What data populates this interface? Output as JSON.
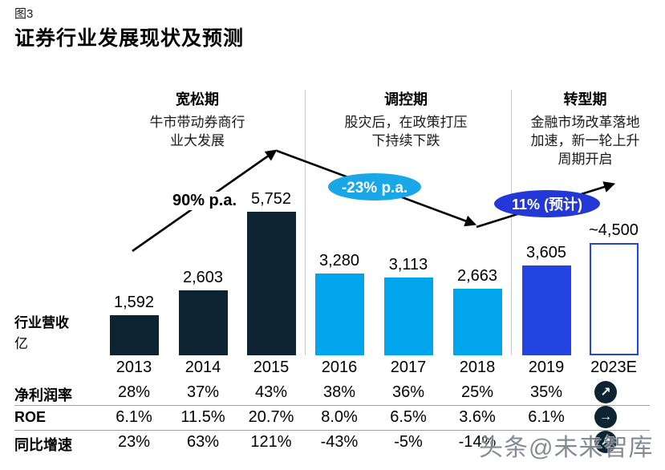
{
  "figure_label": "图3",
  "title": "证券行业发展现状及预测",
  "colors": {
    "bar_dark": "#0e2433",
    "bar_light": "#00a5ec",
    "bar_royal": "#2344e0",
    "outline_border": "#2344e0",
    "bubble_light": "#1aa7e8",
    "bubble_dark": "#2338d6",
    "divider": "#c9c9c9",
    "icon_bg": "#0e2433",
    "watermark": "#757b84"
  },
  "phases": [
    {
      "title": "宽松期",
      "desc_lines": [
        "牛市带动券商行",
        "业大发展"
      ]
    },
    {
      "title": "调控期",
      "desc_lines": [
        "股灾后，在政策打压",
        "下持续下跌"
      ]
    },
    {
      "title": "转型期",
      "desc_lines": [
        "金融市场改革落地",
        "加速，新一轮上升",
        "周期开启"
      ]
    }
  ],
  "annotations": {
    "phase1_rate": "90% p.a.",
    "phase2_rate": "-23% p.a.",
    "phase3_rate": "11% (预计)"
  },
  "y_axis": {
    "title": "行业营收",
    "unit": "亿"
  },
  "chart_data": {
    "type": "bar",
    "title": "证券行业发展现状及预测",
    "ylabel": "行业营收（亿）",
    "categories": [
      "2013",
      "2014",
      "2015",
      "2016",
      "2017",
      "2018",
      "2019",
      "2023E"
    ],
    "values": [
      1592,
      2603,
      5752,
      3280,
      3113,
      2663,
      3605,
      4500
    ],
    "value_labels": [
      "1,592",
      "2,603",
      "5,752",
      "3,280",
      "3,113",
      "2,663",
      "3,605",
      "~4,500"
    ],
    "bar_styles": [
      "dark",
      "dark",
      "dark",
      "light",
      "light",
      "light",
      "royal",
      "outline"
    ],
    "growth_annotations": [
      "90% p.a.",
      "-23% p.a.",
      "11% (预计)"
    ],
    "grid": false,
    "legend": false
  },
  "table": {
    "rows": [
      {
        "label": "净利润率",
        "values": [
          "28%",
          "37%",
          "43%",
          "38%",
          "36%",
          "25%",
          "35%"
        ],
        "icon": "arrow-up-right"
      },
      {
        "label": "ROE",
        "values": [
          "6.1%",
          "11.5%",
          "20.7%",
          "8.0%",
          "6.5%",
          "3.6%",
          "6.1%"
        ],
        "icon": "arrow-right"
      },
      {
        "label": "同比增速",
        "values": [
          "23%",
          "63%",
          "121%",
          "-43%",
          "-5%",
          "-14%",
          ""
        ],
        "icon": "arrow-up-right"
      }
    ]
  },
  "watermark": "头条@未来智库"
}
